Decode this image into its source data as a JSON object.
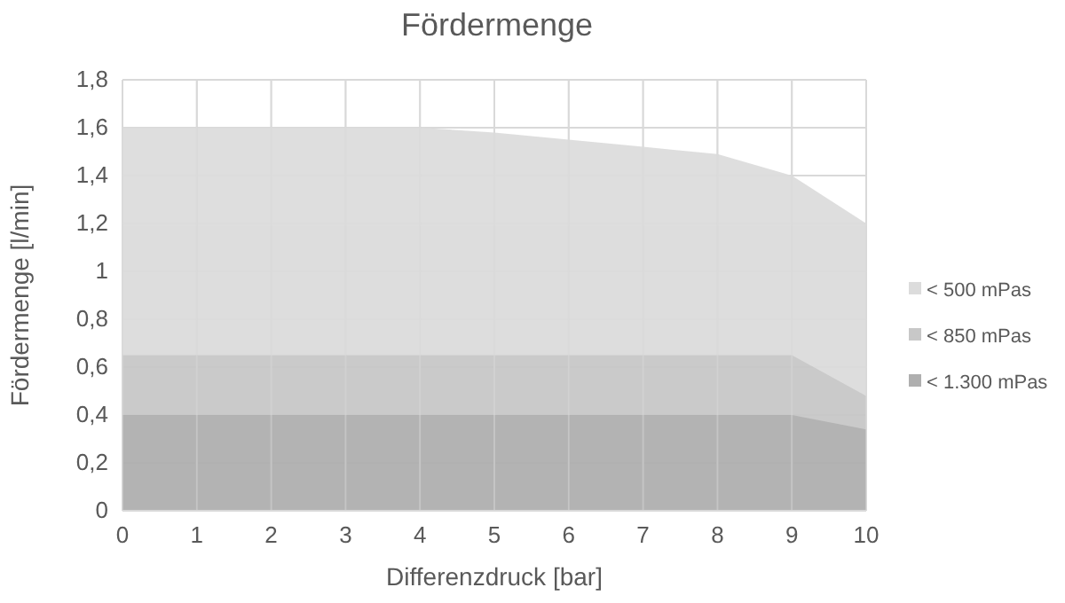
{
  "chart_data": {
    "type": "area",
    "title": "Fördermenge",
    "xlabel": "Differenzdruck [bar]",
    "ylabel": "Fördermenge [l/min]",
    "x": [
      0,
      1,
      2,
      3,
      4,
      5,
      6,
      7,
      8,
      9,
      10
    ],
    "series": [
      {
        "name": "< 500 mPas",
        "color": "#dcdcdc",
        "values": [
          1.6,
          1.6,
          1.6,
          1.6,
          1.6,
          1.58,
          1.55,
          1.52,
          1.49,
          1.4,
          1.2
        ]
      },
      {
        "name": "< 850 mPas",
        "color": "#c8c8c8",
        "values": [
          0.65,
          0.65,
          0.65,
          0.65,
          0.65,
          0.65,
          0.65,
          0.65,
          0.65,
          0.65,
          0.48
        ]
      },
      {
        "name": "< 1.300 mPas",
        "color": "#afafaf",
        "values": [
          0.4,
          0.4,
          0.4,
          0.4,
          0.4,
          0.4,
          0.4,
          0.4,
          0.4,
          0.4,
          0.34
        ]
      }
    ],
    "xlim": [
      0,
      10
    ],
    "xticks": [
      0,
      1,
      2,
      3,
      4,
      5,
      6,
      7,
      8,
      9,
      10
    ],
    "ylim": [
      0,
      1.8
    ],
    "yticks": [
      0,
      {
        "value": 0.2,
        "label": "0,2"
      },
      {
        "value": 0.4,
        "label": "0,4"
      },
      {
        "value": 0.6,
        "label": "0,6"
      },
      {
        "value": 0.8,
        "label": "0,8"
      },
      1,
      {
        "value": 1.2,
        "label": "1,2"
      },
      {
        "value": 1.4,
        "label": "1,4"
      },
      {
        "value": 1.6,
        "label": "1,6"
      },
      {
        "value": 1.8,
        "label": "1,8"
      }
    ],
    "grid": true,
    "legend": "right"
  }
}
